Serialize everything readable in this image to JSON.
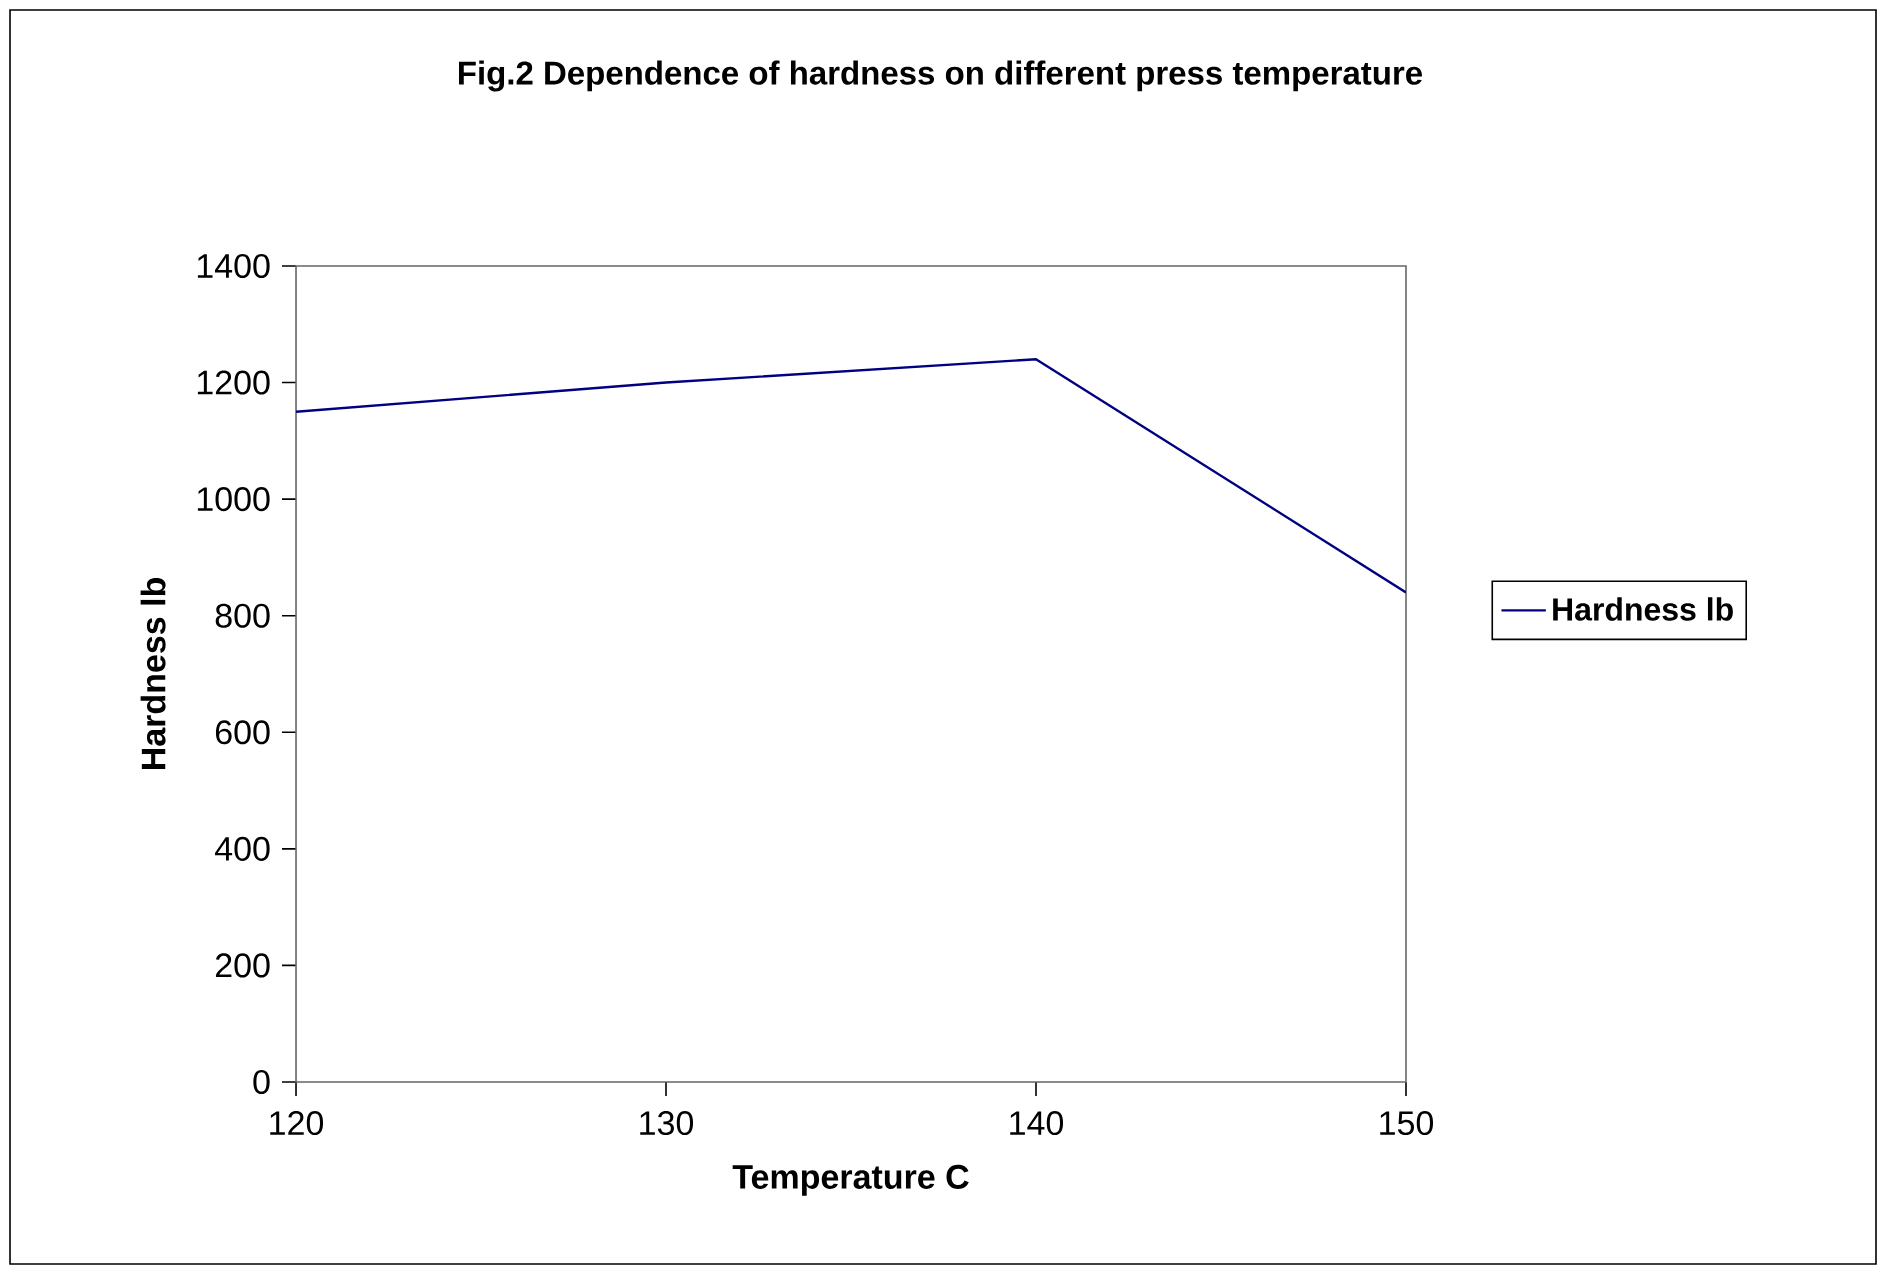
{
  "chart_data": {
    "type": "line",
    "title": "Fig.2 Dependence of hardness on different press temperature",
    "xlabel": "Temperature C",
    "ylabel": "Hardness lb",
    "x": [
      120,
      130,
      140,
      150
    ],
    "series": [
      {
        "name": "Hardness lb",
        "color": "#000080",
        "values": [
          1150,
          1200,
          1240,
          840
        ]
      }
    ],
    "xlim": [
      120,
      150
    ],
    "xticks": [
      120,
      130,
      140,
      150
    ],
    "ylim": [
      0,
      1400
    ],
    "yticks": [
      0,
      200,
      400,
      600,
      800,
      1000,
      1200,
      1400
    ],
    "grid": false,
    "legend": "right",
    "marker": "none",
    "line_style": "solid"
  }
}
